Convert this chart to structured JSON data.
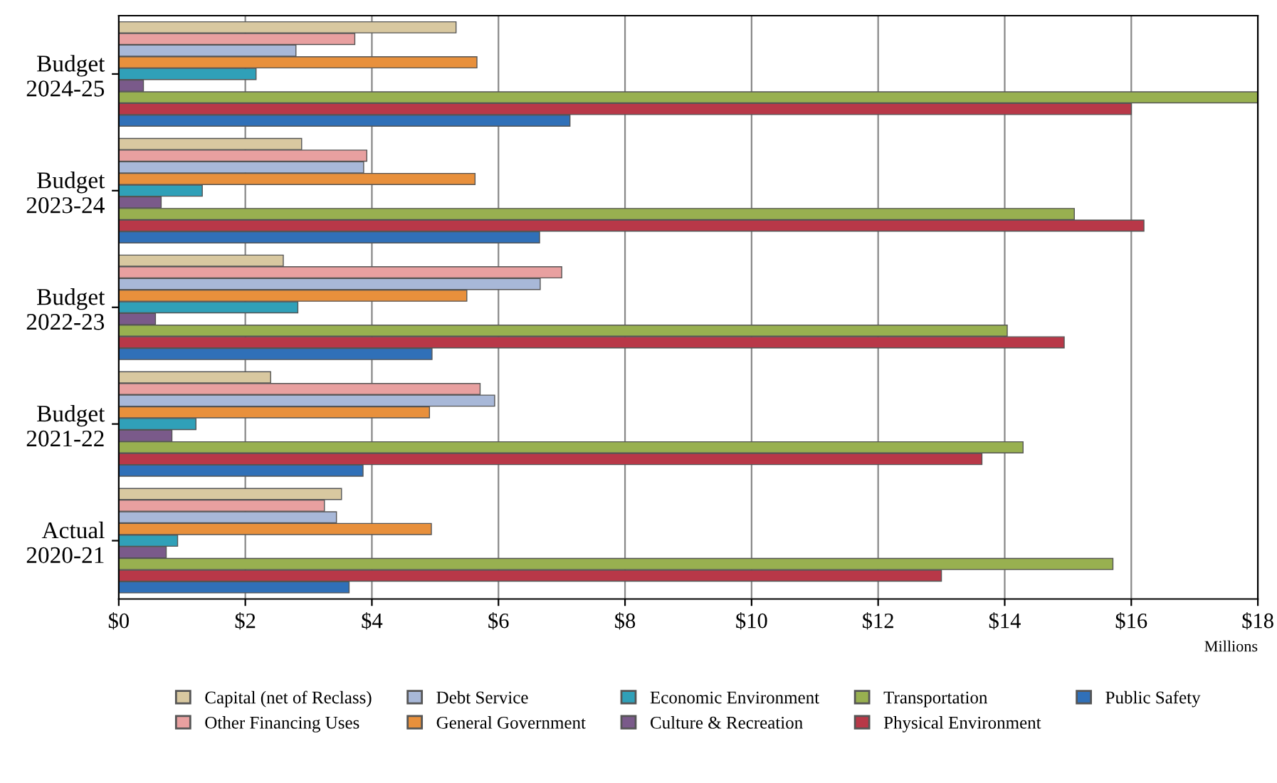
{
  "chart_data": {
    "type": "bar",
    "orientation": "horizontal",
    "categories": [
      "Budget\n2024-25",
      "Budget\n2023-24",
      "Budget\n2022-23",
      "Budget\n2021-22",
      "Actual\n2020-21"
    ],
    "series": [
      {
        "name": "Capital (net of Reclass)",
        "color": "#d8c8a0",
        "values": [
          5.33,
          2.89,
          2.6,
          2.4,
          3.52
        ]
      },
      {
        "name": "Other Financing Uses",
        "color": "#e8a0a0",
        "values": [
          3.73,
          3.92,
          7.0,
          5.71,
          3.25
        ]
      },
      {
        "name": "Debt Service",
        "color": "#a8b8d8",
        "values": [
          2.8,
          3.87,
          6.66,
          5.94,
          3.44
        ]
      },
      {
        "name": "General Government",
        "color": "#e8903c",
        "values": [
          5.66,
          5.63,
          5.5,
          4.91,
          4.94
        ]
      },
      {
        "name": "Economic Environment",
        "color": "#30a0b8",
        "values": [
          2.17,
          1.32,
          2.83,
          1.22,
          0.93
        ]
      },
      {
        "name": "Culture & Recreation",
        "color": "#7a5a8a",
        "values": [
          0.39,
          0.67,
          0.58,
          0.84,
          0.75
        ]
      },
      {
        "name": "Transportation",
        "color": "#98b050",
        "values": [
          18.0,
          15.1,
          14.04,
          14.29,
          15.71
        ]
      },
      {
        "name": "Physical Environment",
        "color": "#b83848",
        "values": [
          16.0,
          16.2,
          14.94,
          13.64,
          13.0
        ]
      },
      {
        "name": "Public Safety",
        "color": "#3070b8",
        "values": [
          7.13,
          6.65,
          4.95,
          3.86,
          3.64
        ]
      }
    ],
    "xlim": [
      0,
      18
    ],
    "xticks": [
      {
        "value": 0,
        "label": "$0"
      },
      {
        "value": 2,
        "label": "$2"
      },
      {
        "value": 4,
        "label": "$4"
      },
      {
        "value": 6,
        "label": "$6"
      },
      {
        "value": 8,
        "label": "$8"
      },
      {
        "value": 10,
        "label": "$10"
      },
      {
        "value": 12,
        "label": "$12"
      },
      {
        "value": 14,
        "label": "$14"
      },
      {
        "value": 16,
        "label": "$16"
      },
      {
        "value": 18,
        "label": "$18"
      }
    ],
    "xlabel": "Millions",
    "grid": "x",
    "legend": "bottom"
  }
}
